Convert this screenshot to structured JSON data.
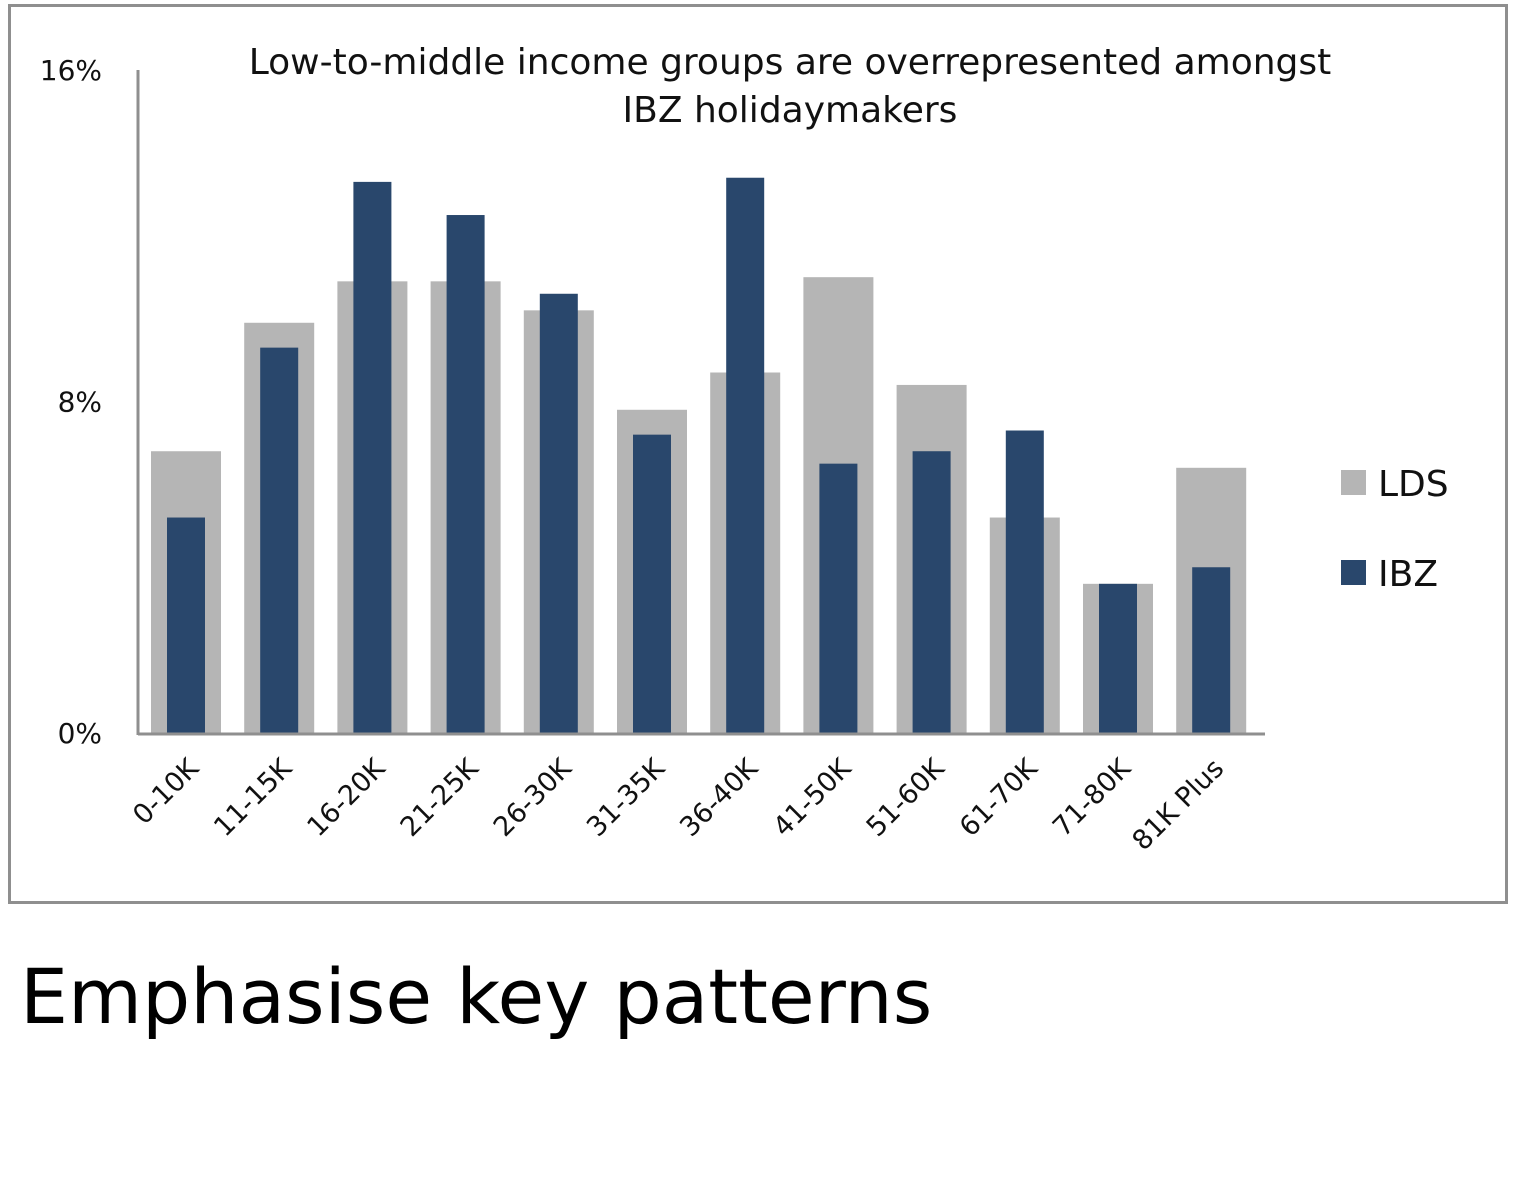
{
  "slide": {
    "caption": "Emphasise key patterns"
  },
  "chart_data": {
    "type": "bar",
    "title_lines": [
      "Low-to-middle income groups are overrepresented amongst",
      "IBZ holidaymakers"
    ],
    "xlabel": "",
    "ylabel": "",
    "ylim": [
      0,
      16
    ],
    "yticks": [
      {
        "value": 0,
        "label": "0%"
      },
      {
        "value": 8,
        "label": "8%"
      },
      {
        "value": 16,
        "label": "16%"
      }
    ],
    "categories": [
      "0-10K",
      "11-15K",
      "16-20K",
      "21-25K",
      "26-30K",
      "31-35K",
      "36-40K",
      "41-50K",
      "51-60K",
      "61-70K",
      "71-80K",
      "81K Plus"
    ],
    "series": [
      {
        "name": "LDS",
        "color": "#b5b5b5",
        "values": [
          6.8,
          9.9,
          10.9,
          10.9,
          10.2,
          7.8,
          8.7,
          11.0,
          8.4,
          5.2,
          3.6,
          6.4
        ]
      },
      {
        "name": "IBZ",
        "color": "#29476c",
        "values": [
          5.2,
          9.3,
          13.3,
          12.5,
          10.6,
          7.2,
          13.4,
          6.5,
          6.8,
          7.3,
          3.6,
          4.0
        ]
      }
    ],
    "grid": false,
    "legend_position": "right"
  }
}
